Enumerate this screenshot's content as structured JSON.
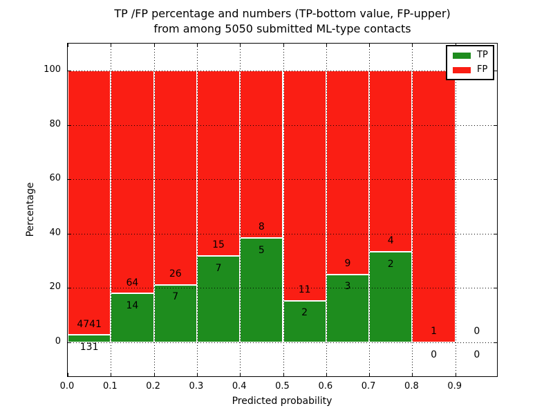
{
  "title": {
    "line1": "TP /FP percentage and numbers (TP-bottom value, FP-upper)",
    "line2": "from among 5050 submitted ML-type contacts"
  },
  "axes": {
    "xlabel": "Predicted probability",
    "ylabel": "Percentage",
    "xtick_labels": [
      "0.0",
      "0.1",
      "0.2",
      "0.3",
      "0.4",
      "0.5",
      "0.6",
      "0.7",
      "0.8",
      "0.9"
    ],
    "xtick_values": [
      0.0,
      0.1,
      0.2,
      0.3,
      0.4,
      0.5,
      0.6,
      0.7,
      0.8,
      0.9
    ],
    "ytick_labels": [
      "0",
      "20",
      "40",
      "60",
      "80",
      "100"
    ],
    "ytick_values": [
      0,
      20,
      40,
      60,
      80,
      100
    ]
  },
  "legend": {
    "items": [
      {
        "label": "TP",
        "color": "#1e8c1e"
      },
      {
        "label": "FP",
        "color": "#fa1e14"
      }
    ]
  },
  "colors": {
    "tp_green": "#1e8c1e",
    "fp_red": "#fa1e14",
    "bar_edge": "#ffffff",
    "grid": "#000000"
  },
  "chart_data": {
    "type": "bar",
    "stacked": true,
    "normalized": "percent",
    "title": "TP /FP percentage and numbers (TP-bottom value, FP-upper) from among 5050 submitted ML-type contacts",
    "xlabel": "Predicted probability",
    "ylabel": "Percentage",
    "categories": [
      "0.0-0.1",
      "0.1-0.2",
      "0.2-0.3",
      "0.3-0.4",
      "0.4-0.5",
      "0.5-0.6",
      "0.6-0.7",
      "0.7-0.8",
      "0.8-0.9",
      "0.9-1.0"
    ],
    "bin_edges": [
      0.0,
      0.1,
      0.2,
      0.3,
      0.4,
      0.5,
      0.6,
      0.7,
      0.8,
      0.9,
      1.0
    ],
    "series": [
      {
        "name": "TP",
        "color": "#1e8c1e",
        "counts": [
          131,
          14,
          7,
          7,
          5,
          2,
          3,
          2,
          0,
          0
        ]
      },
      {
        "name": "FP",
        "color": "#fa1e14",
        "counts": [
          4741,
          64,
          26,
          15,
          8,
          11,
          9,
          4,
          1,
          0
        ]
      }
    ],
    "tp_percent_of_bin": [
      2.7,
      17.9,
      21.2,
      31.8,
      38.5,
      15.4,
      25.0,
      33.3,
      0.0,
      0.0
    ],
    "total_contacts": 5050,
    "xlim": [
      0.0,
      1.0
    ],
    "ylim": [
      -13,
      110
    ],
    "grid": "dotted black, drawn above bars",
    "legend_position": "upper right",
    "annotation_rule": "FP count printed above TP segment top, TP count printed below TP segment top"
  }
}
